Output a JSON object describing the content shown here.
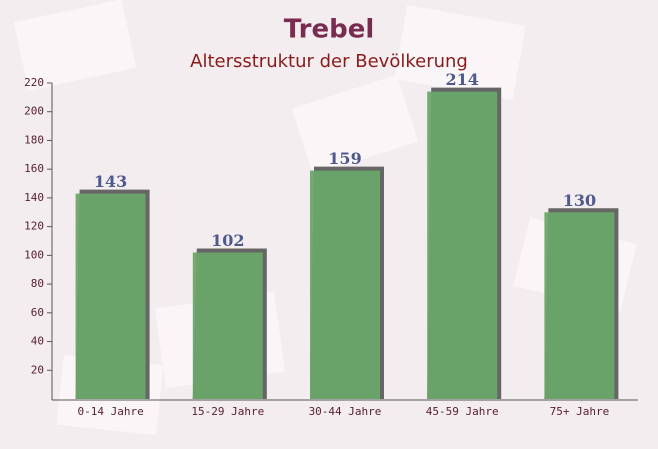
{
  "chart_data": {
    "type": "bar",
    "title": "Trebel",
    "subtitle": "Altersstruktur der Bevölkerung",
    "categories": [
      "0-14 Jahre",
      "15-29 Jahre",
      "30-44 Jahre",
      "45-59 Jahre",
      "75+ Jahre"
    ],
    "values": [
      143,
      102,
      159,
      214,
      130
    ],
    "color": "#6aa66a",
    "ylim": [
      0,
      220
    ],
    "yticks": [
      20,
      40,
      60,
      80,
      100,
      120,
      140,
      160,
      180,
      200,
      220
    ]
  }
}
